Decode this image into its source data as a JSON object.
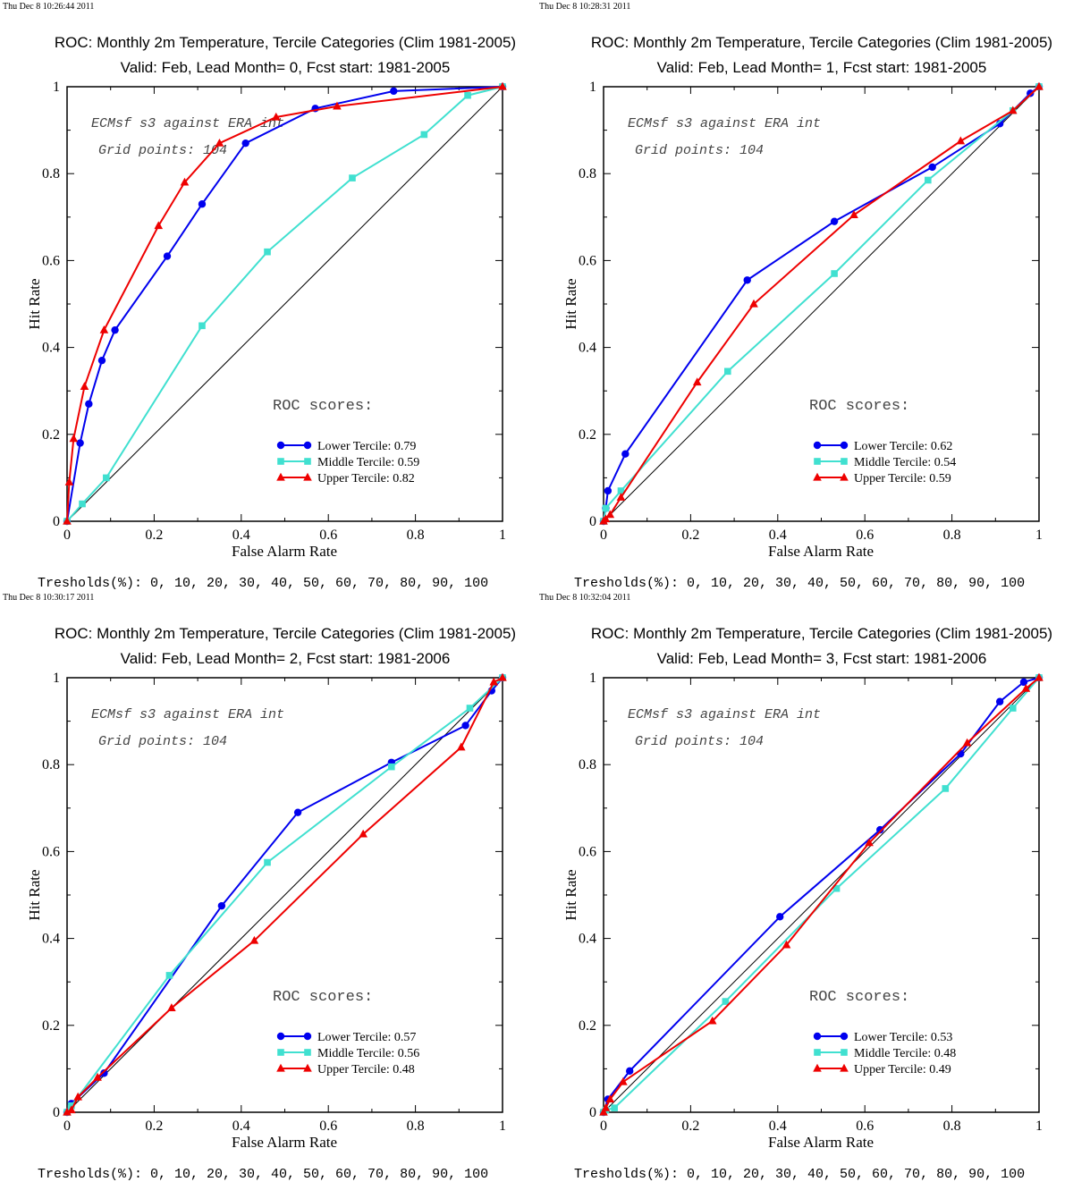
{
  "axes_labels": {
    "xlabel": "False Alarm Rate",
    "ylabel": "Hit Rate"
  },
  "ticks": {
    "x": [
      "0",
      "0.2",
      "0.4",
      "0.6",
      "0.8",
      "1"
    ],
    "y": [
      "0",
      "0.2",
      "0.4",
      "0.6",
      "0.8",
      "1"
    ]
  },
  "annotations": {
    "experiment": "ECMsf s3 against ERA int",
    "grid_points": "Grid points:  104",
    "roc_heading": "ROC scores:"
  },
  "footer": "Tresholds(%): 0, 10, 20, 30, 40, 50, 60, 70, 80, 90, 100",
  "colors": {
    "lower": "#0000ee",
    "middle": "#40e0d0",
    "upper": "#ee0000",
    "diagonal": "#000000"
  },
  "chart_data": [
    {
      "type": "line",
      "timestamp": "Thu Dec  8 10:26:44 2011",
      "title": "ROC: Monthly 2m Temperature, Tercile Categories (Clim 1981-2005)",
      "subtitle": "Valid: Feb, Lead Month= 0, Fcst start: 1981-2005",
      "xlabel": "False Alarm Rate",
      "ylabel": "Hit Rate",
      "xlim": [
        0,
        1
      ],
      "ylim": [
        0,
        1
      ],
      "grid": false,
      "legend_position": "bottom-right",
      "series": [
        {
          "name": "Lower Tercile",
          "label": "Lower Tercile: 0.79",
          "marker": "circle",
          "color": "#0000ee",
          "x": [
            0,
            0.03,
            0.05,
            0.08,
            0.11,
            0.23,
            0.31,
            0.41,
            0.57,
            0.75,
            1
          ],
          "y": [
            0,
            0.18,
            0.27,
            0.37,
            0.44,
            0.61,
            0.73,
            0.87,
            0.95,
            0.99,
            1
          ]
        },
        {
          "name": "Middle Tercile",
          "label": "Middle Tercile: 0.59",
          "marker": "square",
          "color": "#40e0d0",
          "x": [
            0,
            0.035,
            0.09,
            0.31,
            0.46,
            0.655,
            0.82,
            0.92,
            1
          ],
          "y": [
            0,
            0.04,
            0.1,
            0.45,
            0.62,
            0.79,
            0.89,
            0.98,
            1
          ]
        },
        {
          "name": "Upper Tercile",
          "label": "Upper Tercile: 0.82",
          "marker": "triangle",
          "color": "#ee0000",
          "x": [
            0,
            0.005,
            0.015,
            0.04,
            0.085,
            0.21,
            0.27,
            0.35,
            0.48,
            0.62,
            1
          ],
          "y": [
            0,
            0.09,
            0.19,
            0.31,
            0.44,
            0.68,
            0.78,
            0.87,
            0.93,
            0.955,
            1
          ]
        }
      ]
    },
    {
      "type": "line",
      "timestamp": "Thu Dec  8 10:28:31 2011",
      "title": "ROC: Monthly 2m Temperature, Tercile Categories (Clim 1981-2005)",
      "subtitle": "Valid: Feb, Lead Month= 1, Fcst start: 1981-2005",
      "xlabel": "False Alarm Rate",
      "ylabel": "Hit Rate",
      "xlim": [
        0,
        1
      ],
      "ylim": [
        0,
        1
      ],
      "grid": false,
      "legend_position": "bottom-right",
      "series": [
        {
          "name": "Lower Tercile",
          "label": "Lower Tercile: 0.62",
          "marker": "circle",
          "color": "#0000ee",
          "x": [
            0,
            0.005,
            0.01,
            0.05,
            0.33,
            0.53,
            0.755,
            0.91,
            0.98,
            1
          ],
          "y": [
            0,
            0.03,
            0.07,
            0.155,
            0.555,
            0.69,
            0.815,
            0.915,
            0.985,
            1
          ]
        },
        {
          "name": "Middle Tercile",
          "label": "Middle Tercile: 0.54",
          "marker": "square",
          "color": "#40e0d0",
          "x": [
            0,
            0.005,
            0.04,
            0.285,
            0.53,
            0.745,
            0.94,
            1
          ],
          "y": [
            0,
            0.03,
            0.07,
            0.345,
            0.57,
            0.785,
            0.945,
            1
          ]
        },
        {
          "name": "Upper Tercile",
          "label": "Upper Tercile: 0.59",
          "marker": "triangle",
          "color": "#ee0000",
          "x": [
            0,
            0.005,
            0.015,
            0.04,
            0.215,
            0.345,
            0.575,
            0.82,
            0.94,
            1
          ],
          "y": [
            0,
            0.005,
            0.015,
            0.055,
            0.32,
            0.5,
            0.705,
            0.875,
            0.945,
            1
          ]
        }
      ]
    },
    {
      "type": "line",
      "timestamp": "Thu Dec  8 10:30:17 2011",
      "title": "ROC: Monthly 2m Temperature, Tercile Categories (Clim 1981-2005)",
      "subtitle": "Valid: Feb, Lead Month= 2, Fcst start: 1981-2006",
      "xlabel": "False Alarm Rate",
      "ylabel": "Hit Rate",
      "xlim": [
        0,
        1
      ],
      "ylim": [
        0,
        1
      ],
      "grid": false,
      "legend_position": "bottom-right",
      "series": [
        {
          "name": "Lower Tercile",
          "label": "Lower Tercile: 0.57",
          "marker": "circle",
          "color": "#0000ee",
          "x": [
            0,
            0.01,
            0.085,
            0.355,
            0.53,
            0.745,
            0.915,
            0.975,
            1
          ],
          "y": [
            0,
            0.02,
            0.09,
            0.475,
            0.69,
            0.805,
            0.89,
            0.97,
            1
          ]
        },
        {
          "name": "Middle Tercile",
          "label": "Middle Tercile: 0.56",
          "marker": "square",
          "color": "#40e0d0",
          "x": [
            0,
            0.01,
            0.235,
            0.46,
            0.745,
            0.925,
            1
          ],
          "y": [
            0,
            0.015,
            0.315,
            0.575,
            0.795,
            0.93,
            1
          ]
        },
        {
          "name": "Upper Tercile",
          "label": "Upper Tercile: 0.48",
          "marker": "triangle",
          "color": "#ee0000",
          "x": [
            0,
            0.01,
            0.025,
            0.07,
            0.24,
            0.43,
            0.68,
            0.905,
            0.98,
            1
          ],
          "y": [
            0,
            0.005,
            0.035,
            0.08,
            0.24,
            0.395,
            0.64,
            0.84,
            0.99,
            1
          ]
        }
      ]
    },
    {
      "type": "line",
      "timestamp": "Thu Dec  8 10:32:04 2011",
      "title": "ROC: Monthly 2m Temperature, Tercile Categories (Clim 1981-2005)",
      "subtitle": "Valid: Feb, Lead Month= 3, Fcst start: 1981-2006",
      "xlabel": "False Alarm Rate",
      "ylabel": "Hit Rate",
      "xlim": [
        0,
        1
      ],
      "ylim": [
        0,
        1
      ],
      "grid": false,
      "legend_position": "bottom-right",
      "series": [
        {
          "name": "Lower Tercile",
          "label": "Lower Tercile: 0.53",
          "marker": "circle",
          "color": "#0000ee",
          "x": [
            0,
            0.01,
            0.06,
            0.405,
            0.635,
            0.82,
            0.91,
            0.965,
            1
          ],
          "y": [
            0,
            0.03,
            0.095,
            0.45,
            0.65,
            0.825,
            0.945,
            0.99,
            1
          ]
        },
        {
          "name": "Middle Tercile",
          "label": "Middle Tercile: 0.48",
          "marker": "square",
          "color": "#40e0d0",
          "x": [
            0,
            0.005,
            0.025,
            0.28,
            0.535,
            0.785,
            0.94,
            1
          ],
          "y": [
            0,
            0.005,
            0.01,
            0.255,
            0.515,
            0.745,
            0.93,
            1
          ]
        },
        {
          "name": "Upper Tercile",
          "label": "Upper Tercile: 0.49",
          "marker": "triangle",
          "color": "#ee0000",
          "x": [
            0,
            0.005,
            0.015,
            0.045,
            0.25,
            0.42,
            0.61,
            0.835,
            0.97,
            1
          ],
          "y": [
            0,
            0.01,
            0.03,
            0.07,
            0.21,
            0.385,
            0.62,
            0.85,
            0.975,
            1
          ]
        }
      ]
    }
  ]
}
